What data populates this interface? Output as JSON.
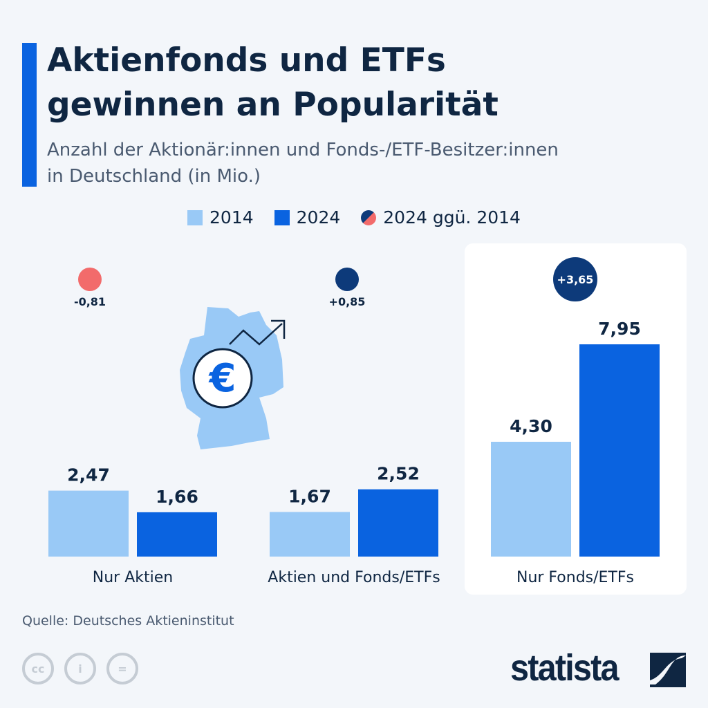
{
  "header": {
    "title_line1": "Aktienfonds und ETFs",
    "title_line2": "gewinnen an Popularität",
    "subtitle_line1": "Anzahl der Aktionär:innen und Fonds-/ETF-Besitzer:innen",
    "subtitle_line2": "in Deutschland (in Mio.)"
  },
  "legend": [
    {
      "label": "2014",
      "color": "#99c9f6"
    },
    {
      "label": "2024",
      "color": "#0a63e0"
    },
    {
      "label": "2024 ggü. 2014"
    }
  ],
  "chart_data": {
    "type": "bar",
    "categories": [
      "Nur Aktien",
      "Aktien und Fonds/ETFs",
      "Nur Fonds/ETFs"
    ],
    "series": [
      {
        "name": "2014",
        "values": [
          2.47,
          1.67,
          4.3
        ],
        "labels": [
          "2,47",
          "1,67",
          "4,30"
        ],
        "color": "#99c9f6"
      },
      {
        "name": "2024",
        "values": [
          1.66,
          2.52,
          7.95
        ],
        "labels": [
          "1,66",
          "2,52",
          "7,95"
        ],
        "color": "#0a63e0"
      }
    ],
    "change": {
      "name": "2024 ggü. 2014",
      "values": [
        -0.81,
        0.85,
        3.65
      ],
      "labels": [
        "-0,81",
        "+0,85",
        "+3,65"
      ],
      "negative_color": "#f26b6b",
      "positive_color": "#0d3a7a"
    },
    "highlighted_category": "Nur Fonds/ETFs",
    "ylim": [
      0,
      7.95
    ],
    "grid": false,
    "legend_placement": "top"
  },
  "footer": {
    "source": "Quelle: Deutsches Aktieninstitut",
    "logo": "statista",
    "license_icons": [
      "cc-icon",
      "attribution-icon",
      "no-derivatives-icon"
    ]
  }
}
